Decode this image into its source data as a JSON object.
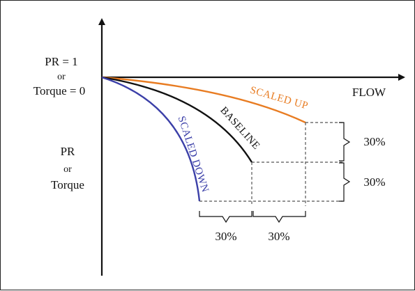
{
  "axis": {
    "x_label": "FLOW",
    "y_top_line1": "PR = 1",
    "y_top_line2": "or",
    "y_top_line3": "Torque = 0",
    "y_mid_line1": "PR",
    "y_mid_line2": "or",
    "y_mid_line3": "Torque"
  },
  "curves": {
    "scaled_up": {
      "label": "SCALED UP",
      "color": "#e87c22"
    },
    "baseline": {
      "label": "BASELINE",
      "color": "#111111"
    },
    "scaled_down": {
      "label": "SCALED DOWN",
      "color": "#3b3fa8"
    }
  },
  "dimensions": {
    "vertical_upper": "30%",
    "vertical_lower": "30%",
    "horizontal_left": "30%",
    "horizontal_right": "30%"
  },
  "colors": {
    "axis": "#111111",
    "dashed_guide": "#555555"
  }
}
